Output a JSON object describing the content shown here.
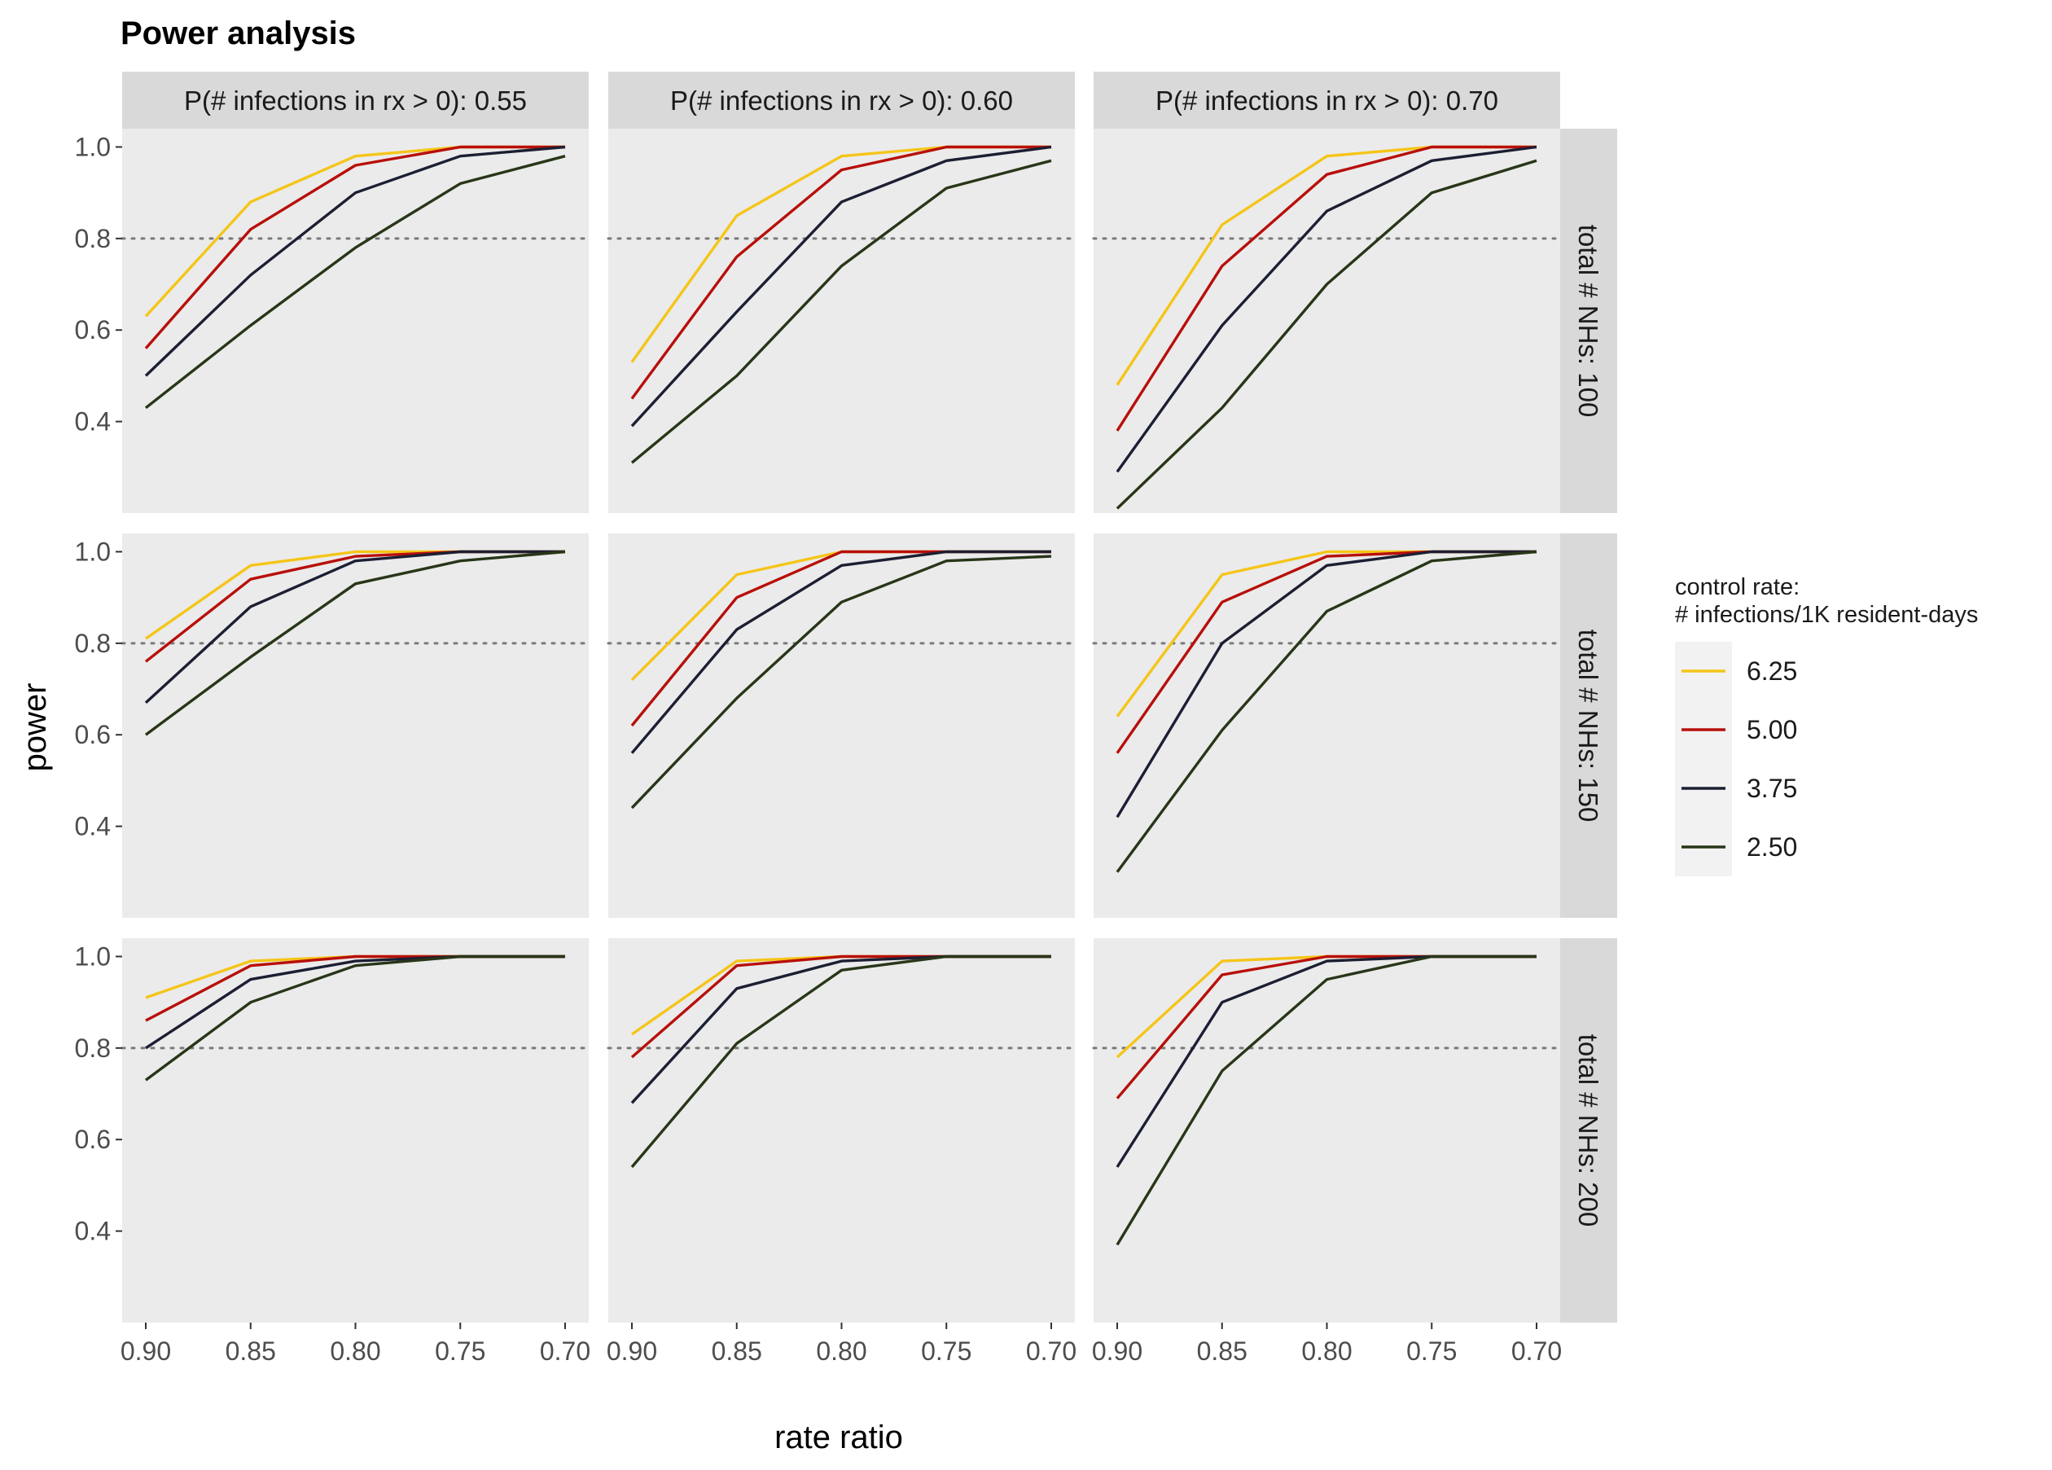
{
  "chart_data": {
    "type": "line",
    "title": "Power analysis",
    "xlabel": "rate ratio",
    "ylabel": "power",
    "x": [
      0.9,
      0.85,
      0.8,
      0.75,
      0.7
    ],
    "x_tick_labels": [
      "0.90",
      "0.85",
      "0.80",
      "0.75",
      "0.70"
    ],
    "x_reversed": true,
    "y_ticks": [
      0.4,
      0.6,
      0.8,
      1.0
    ],
    "y_tick_labels": [
      "0.4",
      "0.6",
      "0.8",
      "1.0"
    ],
    "ylim": [
      0.2,
      1.04
    ],
    "reference_line": 0.8,
    "grid": false,
    "legend": {
      "placement": "right",
      "title_lines": [
        "control rate:",
        "# infections/1K resident-days"
      ]
    },
    "facet_columns": [
      "P(# infections in rx > 0): 0.55",
      "P(# infections in rx > 0): 0.60",
      "P(# infections in rx > 0): 0.70"
    ],
    "facet_rows": [
      "total # NHs: 100",
      "total # NHs: 150",
      "total # NHs: 200"
    ],
    "series": [
      {
        "name": "6.25",
        "color": "#F5C518"
      },
      {
        "name": "5.00",
        "color": "#B80F0A"
      },
      {
        "name": "3.75",
        "color": "#1C1F33"
      },
      {
        "name": "2.50",
        "color": "#283618"
      }
    ],
    "panels": [
      {
        "row": 0,
        "col": 0,
        "values": [
          [
            0.63,
            0.88,
            0.98,
            1.0,
            1.0
          ],
          [
            0.56,
            0.82,
            0.96,
            1.0,
            1.0
          ],
          [
            0.5,
            0.72,
            0.9,
            0.98,
            1.0
          ],
          [
            0.43,
            0.61,
            0.78,
            0.92,
            0.98
          ]
        ]
      },
      {
        "row": 0,
        "col": 1,
        "values": [
          [
            0.53,
            0.85,
            0.98,
            1.0,
            1.0
          ],
          [
            0.45,
            0.76,
            0.95,
            1.0,
            1.0
          ],
          [
            0.39,
            0.64,
            0.88,
            0.97,
            1.0
          ],
          [
            0.31,
            0.5,
            0.74,
            0.91,
            0.97
          ]
        ]
      },
      {
        "row": 0,
        "col": 2,
        "values": [
          [
            0.48,
            0.83,
            0.98,
            1.0,
            1.0
          ],
          [
            0.38,
            0.74,
            0.94,
            1.0,
            1.0
          ],
          [
            0.29,
            0.61,
            0.86,
            0.97,
            1.0
          ],
          [
            0.21,
            0.43,
            0.7,
            0.9,
            0.97
          ]
        ]
      },
      {
        "row": 1,
        "col": 0,
        "values": [
          [
            0.81,
            0.97,
            1.0,
            1.0,
            1.0
          ],
          [
            0.76,
            0.94,
            0.99,
            1.0,
            1.0
          ],
          [
            0.67,
            0.88,
            0.98,
            1.0,
            1.0
          ],
          [
            0.6,
            0.77,
            0.93,
            0.98,
            1.0
          ]
        ]
      },
      {
        "row": 1,
        "col": 1,
        "values": [
          [
            0.72,
            0.95,
            1.0,
            1.0,
            1.0
          ],
          [
            0.62,
            0.9,
            1.0,
            1.0,
            1.0
          ],
          [
            0.56,
            0.83,
            0.97,
            1.0,
            1.0
          ],
          [
            0.44,
            0.68,
            0.89,
            0.98,
            0.99
          ]
        ]
      },
      {
        "row": 1,
        "col": 2,
        "values": [
          [
            0.64,
            0.95,
            1.0,
            1.0,
            1.0
          ],
          [
            0.56,
            0.89,
            0.99,
            1.0,
            1.0
          ],
          [
            0.42,
            0.8,
            0.97,
            1.0,
            1.0
          ],
          [
            0.3,
            0.61,
            0.87,
            0.98,
            1.0
          ]
        ]
      },
      {
        "row": 2,
        "col": 0,
        "values": [
          [
            0.91,
            0.99,
            1.0,
            1.0,
            1.0
          ],
          [
            0.86,
            0.98,
            1.0,
            1.0,
            1.0
          ],
          [
            0.8,
            0.95,
            0.99,
            1.0,
            1.0
          ],
          [
            0.73,
            0.9,
            0.98,
            1.0,
            1.0
          ]
        ]
      },
      {
        "row": 2,
        "col": 1,
        "values": [
          [
            0.83,
            0.99,
            1.0,
            1.0,
            1.0
          ],
          [
            0.78,
            0.98,
            1.0,
            1.0,
            1.0
          ],
          [
            0.68,
            0.93,
            0.99,
            1.0,
            1.0
          ],
          [
            0.54,
            0.81,
            0.97,
            1.0,
            1.0
          ]
        ]
      },
      {
        "row": 2,
        "col": 2,
        "values": [
          [
            0.78,
            0.99,
            1.0,
            1.0,
            1.0
          ],
          [
            0.69,
            0.96,
            1.0,
            1.0,
            1.0
          ],
          [
            0.54,
            0.9,
            0.99,
            1.0,
            1.0
          ],
          [
            0.37,
            0.75,
            0.95,
            1.0,
            1.0
          ]
        ]
      }
    ]
  }
}
